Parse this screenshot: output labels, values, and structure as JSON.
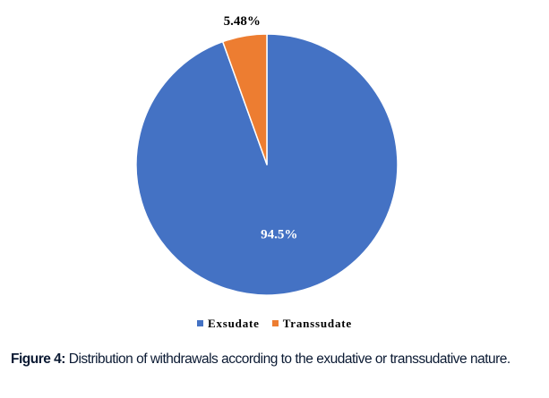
{
  "chart_data": {
    "type": "pie",
    "categories": [
      "Exsudate",
      "Transsudate"
    ],
    "values": [
      94.52,
      5.48
    ],
    "data_labels": [
      "94.5%",
      "5.48%"
    ],
    "colors": [
      "#4472c4",
      "#ed7d31"
    ],
    "start_angle_deg": 0,
    "direction": "clockwise",
    "legend_position": "bottom",
    "title": "",
    "label_color_inside": "#ffffff",
    "label_color_outside": "#000000"
  },
  "caption": {
    "label": "Figure 4:",
    "text": " Distribution of withdrawals according to the exudative or transsudative nature."
  }
}
